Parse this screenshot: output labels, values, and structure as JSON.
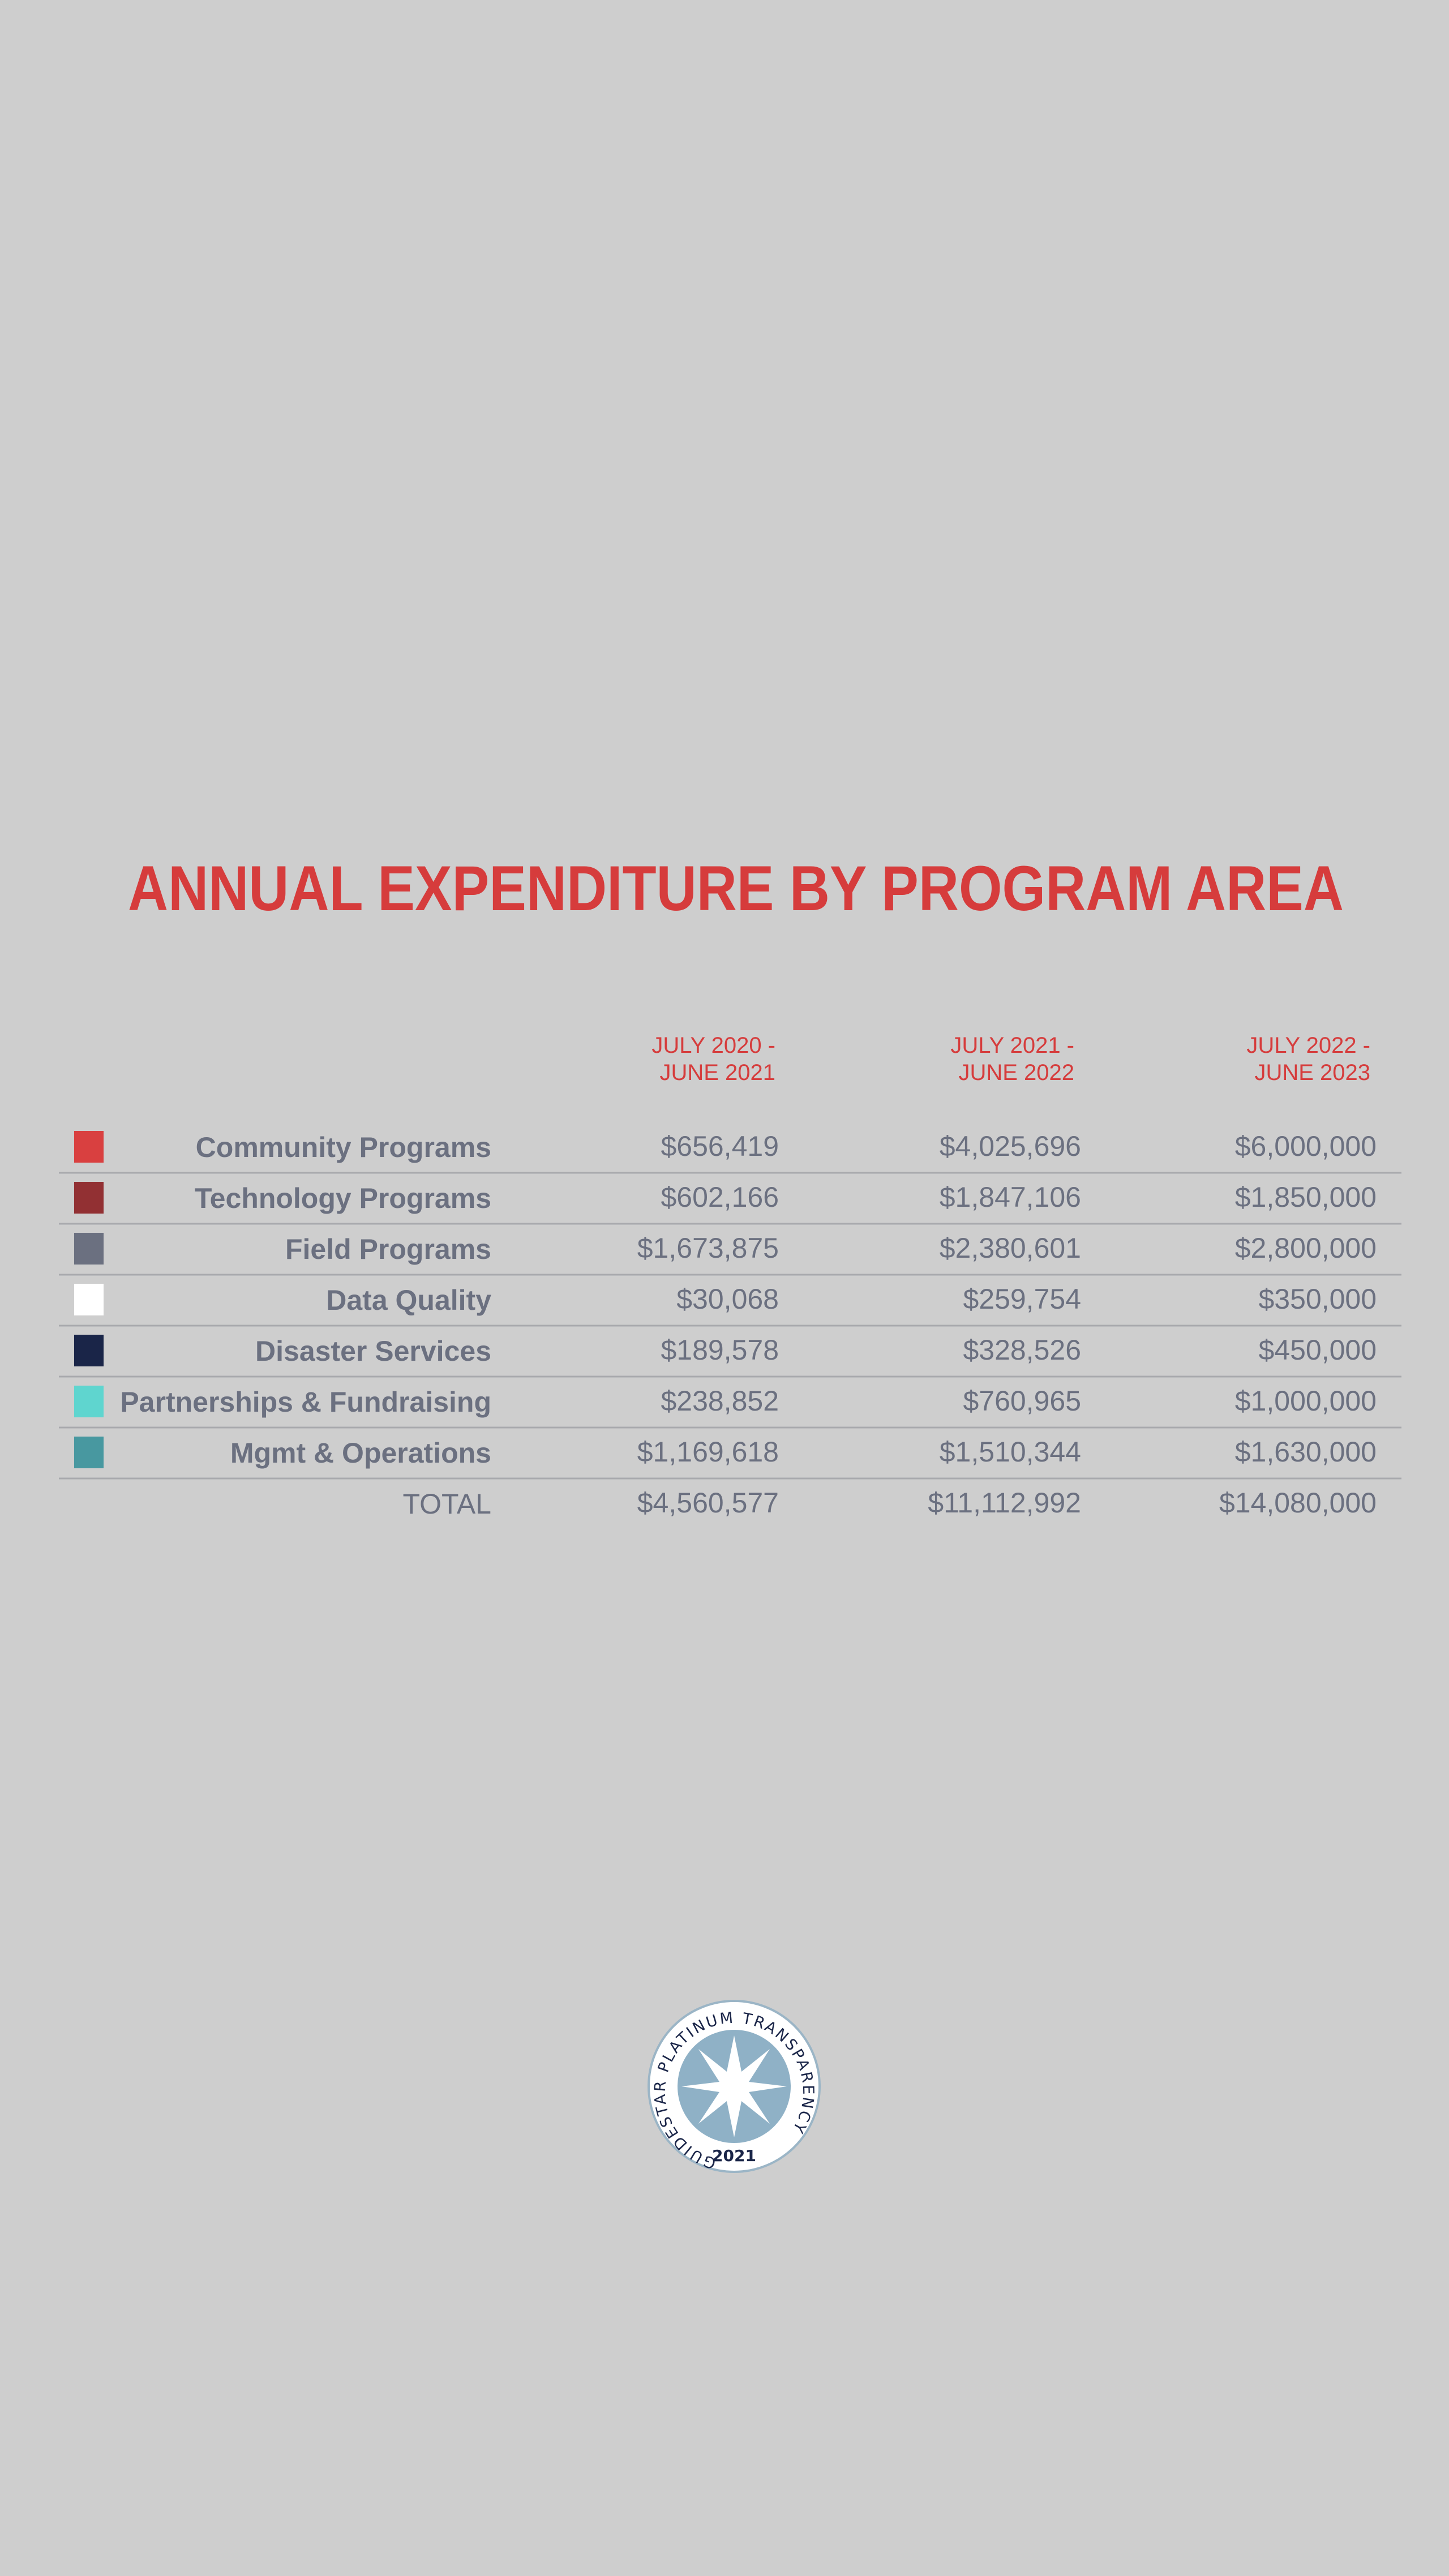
{
  "title": "ANNUAL EXPENDITURE BY PROGRAM AREA",
  "table": {
    "headers": [
      [
        "JULY 2020 -",
        "JUNE 2021"
      ],
      [
        "JULY 2021 -",
        "JUNE 2022"
      ],
      [
        "JULY 2022 -",
        "JUNE 2023"
      ]
    ],
    "rows": [
      {
        "label": "Community Programs",
        "color": "#d94040",
        "values": [
          "$656,419",
          "$4,025,696",
          "$6,000,000"
        ]
      },
      {
        "label": "Technology Programs",
        "color": "#923033",
        "values": [
          "$602,166",
          "$1,847,106",
          "$1,850,000"
        ]
      },
      {
        "label": "Field Programs",
        "color": "#6b7080",
        "values": [
          "$1,673,875",
          "$2,380,601",
          "$2,800,000"
        ]
      },
      {
        "label": "Data Quality",
        "color": "#ffffff",
        "values": [
          "$30,068",
          "$259,754",
          "$350,000"
        ]
      },
      {
        "label": "Disaster Services",
        "color": "#1a2548",
        "values": [
          "$189,578",
          "$328,526",
          "$450,000"
        ]
      },
      {
        "label": "Partnerships & Fundraising",
        "color": "#5fd5cf",
        "values": [
          "$238,852",
          "$760,965",
          "$1,000,000"
        ]
      },
      {
        "label": "Mgmt & Operations",
        "color": "#4898a0",
        "values": [
          "$1,169,618",
          "$1,510,344",
          "$1,630,000"
        ]
      }
    ],
    "total": {
      "label": "TOTAL",
      "values": [
        "$4,560,577",
        "$11,112,992",
        "$14,080,000"
      ]
    }
  },
  "badge": {
    "text": "GUIDESTAR PLATINUM TRANSPARENCY",
    "year": "2021"
  }
}
